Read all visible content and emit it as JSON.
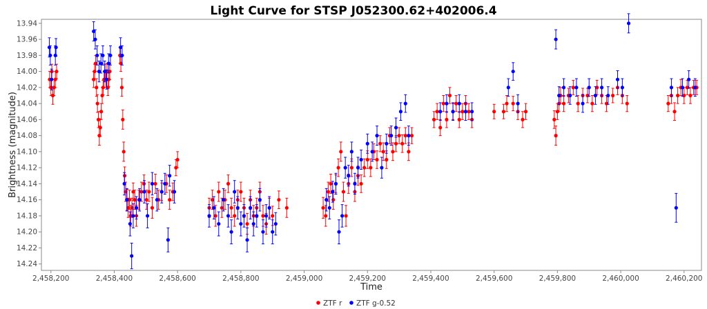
{
  "chart_data": {
    "type": "scatter",
    "title": "Light Curve for STSP J052300.62+402006.4",
    "xlabel": "Time",
    "ylabel": "Brightness (magnitude)",
    "xlim": [
      2458170,
      2460255
    ],
    "ylim": [
      14.248,
      13.935
    ],
    "y_inverted": true,
    "grid": false,
    "legend_position": "bottom-center",
    "x_ticks": [
      2458200,
      2458400,
      2458600,
      2458800,
      2459000,
      2459200,
      2459400,
      2459600,
      2459800,
      2460000,
      2460200
    ],
    "x_tick_labels": [
      "2,458,200",
      "2,458,400",
      "2,458,600",
      "2,458,800",
      "2,459,000",
      "2,459,200",
      "2,459,400",
      "2,459,600",
      "2,459,800",
      "2,460,000",
      "2,460,200"
    ],
    "y_ticks": [
      13.94,
      13.96,
      13.98,
      14.0,
      14.02,
      14.04,
      14.06,
      14.08,
      14.1,
      14.12,
      14.14,
      14.16,
      14.18,
      14.2,
      14.22,
      14.24
    ],
    "y_tick_labels": [
      "13.94",
      "13.96",
      "13.98",
      "14.00",
      "14.02",
      "14.04",
      "14.06",
      "14.08",
      "14.10",
      "14.12",
      "14.14",
      "14.16",
      "14.18",
      "14.20",
      "14.22",
      "14.24"
    ],
    "series": [
      {
        "name": "ZTF r",
        "color": "#ff0000",
        "x": [
          2458196,
          2458200,
          2458203,
          2458206,
          2458210,
          2458214,
          2458218,
          2458335,
          2458338,
          2458341,
          2458344,
          2458347,
          2458350,
          2458353,
          2458356,
          2458359,
          2458362,
          2458365,
          2458368,
          2458371,
          2458374,
          2458377,
          2458380,
          2458383,
          2458386,
          2458418,
          2458421,
          2458424,
          2458427,
          2458430,
          2458433,
          2458436,
          2458440,
          2458444,
          2458448,
          2458452,
          2458456,
          2458460,
          2458465,
          2458470,
          2458478,
          2458486,
          2458494,
          2458502,
          2458510,
          2458520,
          2458530,
          2458540,
          2458550,
          2458565,
          2458575,
          2458585,
          2458595,
          2458600,
          2458700,
          2458710,
          2458720,
          2458730,
          2458740,
          2458750,
          2458760,
          2458770,
          2458780,
          2458790,
          2458800,
          2458810,
          2458820,
          2458830,
          2458840,
          2458850,
          2458860,
          2458870,
          2458880,
          2458890,
          2458900,
          2458920,
          2458945,
          2459060,
          2459068,
          2459076,
          2459084,
          2459092,
          2459100,
          2459108,
          2459116,
          2459124,
          2459132,
          2459140,
          2459150,
          2459160,
          2459170,
          2459180,
          2459190,
          2459200,
          2459210,
          2459220,
          2459230,
          2459240,
          2459250,
          2459260,
          2459270,
          2459280,
          2459290,
          2459300,
          2459310,
          2459320,
          2459330,
          2459340,
          2459410,
          2459420,
          2459430,
          2459440,
          2459450,
          2459460,
          2459470,
          2459480,
          2459490,
          2459500,
          2459510,
          2459520,
          2459530,
          2459600,
          2459630,
          2459640,
          2459660,
          2459675,
          2459690,
          2459700,
          2459790,
          2459795,
          2459800,
          2459805,
          2459810,
          2459820,
          2459835,
          2459850,
          2459865,
          2459880,
          2459895,
          2459910,
          2459925,
          2459940,
          2459955,
          2459975,
          2459990,
          2460005,
          2460020,
          2460150,
          2460160,
          2460170,
          2460180,
          2460190,
          2460200,
          2460210,
          2460220,
          2460230,
          2460240
        ],
        "y": [
          14.01,
          14.02,
          14.0,
          14.03,
          14.02,
          14.01,
          14.0,
          14.01,
          14.0,
          13.99,
          14.02,
          14.04,
          14.06,
          14.08,
          14.07,
          14.05,
          14.03,
          14.02,
          14.01,
          14.0,
          14.01,
          14.0,
          14.02,
          14.01,
          14.0,
          13.98,
          13.99,
          14.02,
          14.06,
          14.1,
          14.13,
          14.15,
          14.16,
          14.17,
          14.16,
          14.18,
          14.17,
          14.15,
          14.16,
          14.18,
          14.16,
          14.15,
          14.14,
          14.16,
          14.15,
          14.17,
          14.14,
          14.16,
          14.15,
          14.14,
          14.16,
          14.15,
          14.12,
          14.11,
          14.17,
          14.16,
          14.18,
          14.15,
          14.17,
          14.16,
          14.14,
          14.17,
          14.18,
          14.16,
          14.15,
          14.17,
          14.19,
          14.16,
          14.18,
          14.17,
          14.15,
          14.18,
          14.19,
          14.17,
          14.18,
          14.16,
          14.17,
          14.17,
          14.18,
          14.15,
          14.14,
          14.16,
          14.14,
          14.12,
          14.1,
          14.15,
          14.18,
          14.14,
          14.12,
          14.15,
          14.13,
          14.14,
          14.12,
          14.11,
          14.12,
          14.1,
          14.11,
          14.09,
          14.1,
          14.11,
          14.08,
          14.1,
          14.09,
          14.08,
          14.09,
          14.08,
          14.1,
          14.08,
          14.06,
          14.05,
          14.07,
          14.04,
          14.06,
          14.03,
          14.05,
          14.04,
          14.06,
          14.05,
          14.04,
          14.05,
          14.06,
          14.05,
          14.05,
          14.04,
          14.04,
          14.05,
          14.06,
          14.05,
          14.06,
          14.08,
          14.05,
          14.04,
          14.03,
          14.04,
          14.03,
          14.02,
          14.04,
          14.03,
          14.03,
          14.04,
          14.02,
          14.03,
          14.04,
          14.03,
          14.02,
          14.03,
          14.04,
          14.04,
          14.03,
          14.05,
          14.03,
          14.02,
          14.03,
          14.02,
          14.03,
          14.02,
          14.02
        ],
        "err": [
          0.01,
          0.01,
          0.009,
          0.011,
          0.01,
          0.01,
          0.009,
          0.01,
          0.009,
          0.01,
          0.011,
          0.011,
          0.01,
          0.012,
          0.011,
          0.01,
          0.01,
          0.009,
          0.01,
          0.009,
          0.01,
          0.01,
          0.01,
          0.009,
          0.01,
          0.01,
          0.01,
          0.011,
          0.012,
          0.012,
          0.011,
          0.012,
          0.013,
          0.012,
          0.012,
          0.013,
          0.012,
          0.011,
          0.012,
          0.013,
          0.012,
          0.012,
          0.011,
          0.012,
          0.012,
          0.013,
          0.012,
          0.012,
          0.011,
          0.011,
          0.012,
          0.011,
          0.01,
          0.01,
          0.012,
          0.012,
          0.013,
          0.012,
          0.012,
          0.012,
          0.011,
          0.012,
          0.013,
          0.012,
          0.012,
          0.012,
          0.013,
          0.012,
          0.013,
          0.012,
          0.012,
          0.013,
          0.013,
          0.012,
          0.012,
          0.011,
          0.012,
          0.013,
          0.013,
          0.012,
          0.012,
          0.012,
          0.011,
          0.011,
          0.012,
          0.012,
          0.013,
          0.012,
          0.011,
          0.012,
          0.012,
          0.011,
          0.011,
          0.011,
          0.011,
          0.01,
          0.011,
          0.01,
          0.011,
          0.011,
          0.01,
          0.011,
          0.01,
          0.01,
          0.011,
          0.01,
          0.011,
          0.01,
          0.01,
          0.01,
          0.01,
          0.01,
          0.01,
          0.01,
          0.01,
          0.01,
          0.01,
          0.01,
          0.01,
          0.01,
          0.01,
          0.009,
          0.009,
          0.01,
          0.009,
          0.01,
          0.01,
          0.01,
          0.011,
          0.012,
          0.01,
          0.01,
          0.01,
          0.01,
          0.009,
          0.009,
          0.01,
          0.009,
          0.009,
          0.01,
          0.009,
          0.01,
          0.01,
          0.009,
          0.009,
          0.01,
          0.01,
          0.01,
          0.01,
          0.011,
          0.01,
          0.01,
          0.01,
          0.009,
          0.01,
          0.009,
          0.009
        ]
      },
      {
        "name": "ZTF g-0.52",
        "color": "#0000ff",
        "x": [
          2458195,
          2458198,
          2458202,
          2458214,
          2458216,
          2458335,
          2458340,
          2458346,
          2458352,
          2458358,
          2458364,
          2458370,
          2458376,
          2458382,
          2458388,
          2458420,
          2458425,
          2458432,
          2458440,
          2458450,
          2458455,
          2458460,
          2458470,
          2458480,
          2458495,
          2458505,
          2458520,
          2458535,
          2458550,
          2458560,
          2458570,
          2458575,
          2458590,
          2458700,
          2458715,
          2458730,
          2458745,
          2458760,
          2458770,
          2458780,
          2458790,
          2458800,
          2458810,
          2458820,
          2458830,
          2458840,
          2458850,
          2458860,
          2458870,
          2458880,
          2458890,
          2458900,
          2458910,
          2459070,
          2459080,
          2459090,
          2459100,
          2459110,
          2459120,
          2459130,
          2459140,
          2459150,
          2459160,
          2459170,
          2459180,
          2459200,
          2459215,
          2459230,
          2459245,
          2459260,
          2459275,
          2459290,
          2459305,
          2459320,
          2459330,
          2459430,
          2459450,
          2459470,
          2459490,
          2459510,
          2459530,
          2459645,
          2459660,
          2459675,
          2459795,
          2459805,
          2459820,
          2459840,
          2459860,
          2459880,
          2459900,
          2459920,
          2459940,
          2459960,
          2459990,
          2460005,
          2460025,
          2460160,
          2460175,
          2460195,
          2460215,
          2460235
        ],
        "y": [
          13.97,
          13.98,
          14.01,
          13.98,
          13.97,
          13.95,
          13.96,
          13.98,
          14.0,
          13.99,
          13.98,
          14.0,
          14.01,
          13.99,
          13.98,
          13.97,
          13.98,
          14.14,
          14.16,
          14.19,
          14.23,
          14.18,
          14.17,
          14.16,
          14.15,
          14.18,
          14.14,
          14.16,
          14.15,
          14.14,
          14.21,
          14.13,
          14.15,
          14.18,
          14.17,
          14.19,
          14.16,
          14.18,
          14.2,
          14.15,
          14.17,
          14.19,
          14.18,
          14.21,
          14.17,
          14.19,
          14.18,
          14.16,
          14.2,
          14.18,
          14.17,
          14.2,
          14.19,
          14.16,
          14.17,
          14.15,
          14.14,
          14.2,
          14.18,
          14.12,
          14.13,
          14.1,
          14.14,
          14.12,
          14.11,
          14.09,
          14.1,
          14.08,
          14.12,
          14.09,
          14.08,
          14.07,
          14.05,
          14.04,
          14.08,
          14.05,
          14.04,
          14.05,
          14.04,
          14.05,
          14.05,
          14.02,
          14.0,
          14.04,
          13.96,
          14.03,
          14.02,
          14.03,
          14.02,
          14.04,
          14.02,
          14.03,
          14.02,
          14.03,
          14.01,
          14.02,
          13.94,
          14.02,
          14.17,
          14.02,
          14.01,
          14.02
        ],
        "err": [
          0.012,
          0.012,
          0.013,
          0.012,
          0.011,
          0.012,
          0.012,
          0.012,
          0.013,
          0.012,
          0.012,
          0.013,
          0.012,
          0.012,
          0.012,
          0.012,
          0.012,
          0.014,
          0.014,
          0.015,
          0.016,
          0.015,
          0.014,
          0.014,
          0.014,
          0.015,
          0.014,
          0.014,
          0.014,
          0.013,
          0.015,
          0.013,
          0.014,
          0.014,
          0.014,
          0.015,
          0.014,
          0.014,
          0.015,
          0.014,
          0.014,
          0.015,
          0.014,
          0.015,
          0.014,
          0.015,
          0.014,
          0.014,
          0.015,
          0.014,
          0.014,
          0.015,
          0.014,
          0.014,
          0.014,
          0.013,
          0.013,
          0.015,
          0.014,
          0.013,
          0.013,
          0.012,
          0.013,
          0.013,
          0.012,
          0.012,
          0.012,
          0.012,
          0.013,
          0.012,
          0.012,
          0.012,
          0.011,
          0.011,
          0.012,
          0.011,
          0.011,
          0.011,
          0.011,
          0.011,
          0.011,
          0.011,
          0.011,
          0.011,
          0.012,
          0.011,
          0.011,
          0.011,
          0.011,
          0.011,
          0.011,
          0.011,
          0.011,
          0.011,
          0.011,
          0.011,
          0.012,
          0.011,
          0.018,
          0.011,
          0.011,
          0.011
        ]
      }
    ]
  }
}
